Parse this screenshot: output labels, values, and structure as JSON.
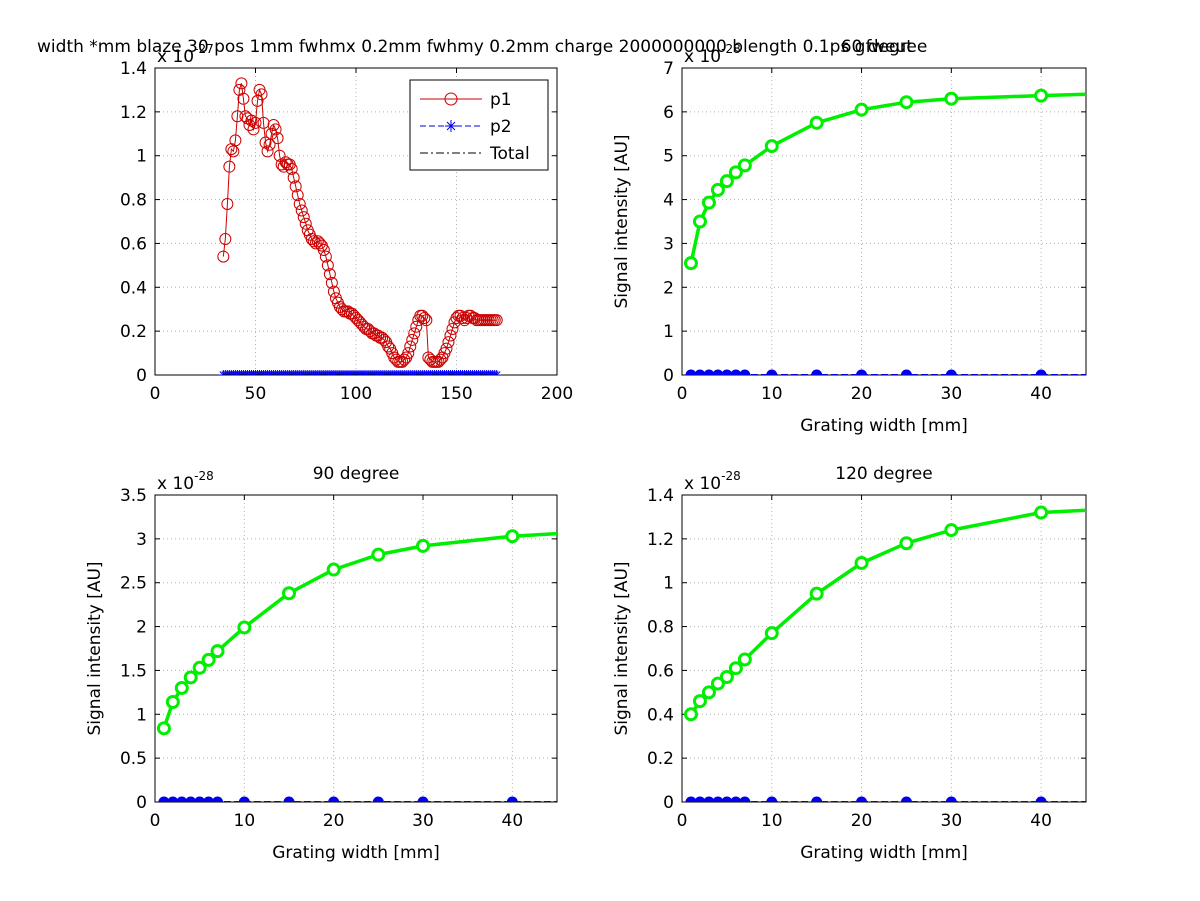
{
  "figure": {
    "suptitle": "width *mm blaze 30 pos 1mm fwhmx 0.2mm fwhmy 0.2mm charge 2000000000 blength 0.1ps gfweut",
    "colors": {
      "p1": "#cc0000",
      "p2": "#0000ee",
      "total": "#000000",
      "green": "#00ee00",
      "blue": "#0000ee",
      "grid": "#b0b0b0"
    }
  },
  "chart_data": [
    {
      "type": "line",
      "title": "",
      "xlabel": "",
      "ylabel": "",
      "exponent_base": "x 10",
      "exponent_power": "-27",
      "xlim": [
        0,
        200
      ],
      "ylim": [
        0,
        1.4
      ],
      "xticks": [
        0,
        50,
        100,
        150,
        200
      ],
      "yticks": [
        0,
        0.2,
        0.4,
        0.6,
        0.8,
        1,
        1.2,
        1.4
      ],
      "grid": true,
      "legend": {
        "position": "top-right",
        "entries": [
          {
            "label": "p1",
            "marker": "circle",
            "style": "solid",
            "color": "#cc0000"
          },
          {
            "label": "p2",
            "marker": "star",
            "style": "dashed",
            "color": "#0000ee"
          },
          {
            "label": "Total",
            "marker": "none",
            "style": "dashdot",
            "color": "#000000"
          }
        ]
      },
      "series": [
        {
          "name": "p1",
          "x": [
            34,
            35,
            36,
            37,
            38,
            39,
            40,
            41,
            42,
            43,
            44,
            45,
            46,
            47,
            48,
            49,
            50,
            51,
            52,
            53,
            54,
            55,
            56,
            57,
            58,
            59,
            60,
            61,
            62,
            63,
            64,
            65,
            66,
            67,
            68,
            69,
            70,
            71,
            72,
            73,
            74,
            75,
            76,
            77,
            78,
            79,
            80,
            81,
            82,
            83,
            84,
            85,
            86,
            87,
            88,
            89,
            90,
            91,
            92,
            93,
            94,
            95,
            96,
            97,
            98,
            99,
            100,
            101,
            102,
            103,
            104,
            105,
            106,
            107,
            108,
            109,
            110,
            111,
            112,
            113,
            114,
            115,
            116,
            117,
            118,
            119,
            120,
            121,
            122,
            123,
            124,
            125,
            126,
            127,
            128,
            129,
            130,
            131,
            132,
            133,
            134,
            135,
            136,
            137,
            138,
            139,
            140,
            141,
            142,
            143,
            144,
            145,
            146,
            147,
            148,
            149,
            150,
            151,
            152,
            153,
            154,
            155,
            156,
            157,
            158,
            159,
            160,
            161,
            162,
            163,
            164,
            165,
            166,
            167,
            168,
            169,
            170
          ],
          "y": [
            0.54,
            0.62,
            0.78,
            0.95,
            1.03,
            1.02,
            1.07,
            1.18,
            1.3,
            1.33,
            1.26,
            1.18,
            1.17,
            1.14,
            1.16,
            1.12,
            1.15,
            1.25,
            1.3,
            1.28,
            1.15,
            1.06,
            1.02,
            1.05,
            1.1,
            1.14,
            1.12,
            1.08,
            1.0,
            0.96,
            0.95,
            0.97,
            0.96,
            0.96,
            0.94,
            0.9,
            0.86,
            0.82,
            0.78,
            0.75,
            0.72,
            0.69,
            0.66,
            0.64,
            0.62,
            0.61,
            0.6,
            0.61,
            0.6,
            0.59,
            0.57,
            0.54,
            0.5,
            0.46,
            0.42,
            0.38,
            0.35,
            0.33,
            0.31,
            0.3,
            0.29,
            0.29,
            0.29,
            0.28,
            0.28,
            0.27,
            0.26,
            0.25,
            0.24,
            0.23,
            0.22,
            0.21,
            0.21,
            0.2,
            0.19,
            0.19,
            0.18,
            0.18,
            0.17,
            0.17,
            0.16,
            0.15,
            0.13,
            0.12,
            0.1,
            0.08,
            0.07,
            0.06,
            0.06,
            0.06,
            0.07,
            0.08,
            0.1,
            0.13,
            0.16,
            0.19,
            0.22,
            0.25,
            0.27,
            0.27,
            0.26,
            0.25,
            0.08,
            0.07,
            0.06,
            0.06,
            0.06,
            0.06,
            0.07,
            0.08,
            0.1,
            0.12,
            0.15,
            0.18,
            0.21,
            0.24,
            0.26,
            0.27,
            0.27,
            0.26,
            0.25,
            0.26,
            0.27,
            0.27,
            0.26,
            0.26,
            0.25,
            0.25,
            0.25,
            0.25,
            0.25,
            0.25,
            0.25,
            0.25,
            0.25,
            0.25,
            0.25
          ]
        },
        {
          "name": "p2",
          "x_range": [
            34,
            170
          ],
          "x_step": 1,
          "y_value": 0
        },
        {
          "name": "Total",
          "x_range": [
            34,
            170
          ],
          "y_value": 0
        }
      ]
    },
    {
      "type": "line",
      "title": "60 degree",
      "xlabel": "Grating width [mm]",
      "ylabel": "Signal intensity [AU]",
      "exponent_base": "x 10",
      "exponent_power": "-28",
      "xlim": [
        0,
        45
      ],
      "ylim": [
        0,
        7
      ],
      "xticks": [
        0,
        10,
        20,
        30,
        40
      ],
      "yticks": [
        0,
        1,
        2,
        3,
        4,
        5,
        6,
        7
      ],
      "grid": true,
      "series": [
        {
          "name": "",
          "color": "#00ee00",
          "marker": "circle",
          "x": [
            1,
            2,
            3,
            4,
            5,
            6,
            7,
            10,
            15,
            20,
            25,
            30,
            40,
            45
          ],
          "y": [
            2.55,
            3.5,
            3.93,
            4.22,
            4.42,
            4.62,
            4.78,
            5.22,
            5.75,
            6.05,
            6.22,
            6.3,
            6.37,
            6.4
          ],
          "markers_on": 13
        },
        {
          "name": "",
          "color": "#0000ee",
          "marker": "dot",
          "x": [
            1,
            2,
            3,
            4,
            5,
            6,
            7,
            10,
            15,
            20,
            25,
            30,
            40,
            45
          ],
          "y": [
            0,
            0,
            0,
            0,
            0,
            0,
            0,
            0,
            0,
            0,
            0,
            0,
            0,
            0
          ],
          "markers_on": 13
        }
      ]
    },
    {
      "type": "line",
      "title": "90 degree",
      "xlabel": "Grating width [mm]",
      "ylabel": "Signal intensity [AU]",
      "exponent_base": "x 10",
      "exponent_power": "-28",
      "xlim": [
        0,
        45
      ],
      "ylim": [
        0,
        3.5
      ],
      "xticks": [
        0,
        10,
        20,
        30,
        40
      ],
      "yticks": [
        0,
        0.5,
        1,
        1.5,
        2,
        2.5,
        3,
        3.5
      ],
      "grid": true,
      "series": [
        {
          "name": "",
          "color": "#00ee00",
          "marker": "circle",
          "x": [
            1,
            2,
            3,
            4,
            5,
            6,
            7,
            10,
            15,
            20,
            25,
            30,
            40,
            45
          ],
          "y": [
            0.84,
            1.14,
            1.3,
            1.42,
            1.53,
            1.62,
            1.72,
            1.99,
            2.38,
            2.65,
            2.82,
            2.92,
            3.03,
            3.06
          ],
          "markers_on": 13
        },
        {
          "name": "",
          "color": "#0000ee",
          "marker": "dot",
          "x": [
            1,
            2,
            3,
            4,
            5,
            6,
            7,
            10,
            15,
            20,
            25,
            30,
            40,
            45
          ],
          "y": [
            0,
            0,
            0,
            0,
            0,
            0,
            0,
            0,
            0,
            0,
            0,
            0,
            0,
            0
          ],
          "markers_on": 13
        }
      ]
    },
    {
      "type": "line",
      "title": "120 degree",
      "xlabel": "Grating width [mm]",
      "ylabel": "Signal intensity [AU]",
      "exponent_base": "x 10",
      "exponent_power": "-28",
      "xlim": [
        0,
        45
      ],
      "ylim": [
        0,
        1.4
      ],
      "xticks": [
        0,
        10,
        20,
        30,
        40
      ],
      "yticks": [
        0,
        0.2,
        0.4,
        0.6,
        0.8,
        1,
        1.2,
        1.4
      ],
      "grid": true,
      "series": [
        {
          "name": "",
          "color": "#00ee00",
          "marker": "circle",
          "x": [
            1,
            2,
            3,
            4,
            5,
            6,
            7,
            10,
            15,
            20,
            25,
            30,
            40,
            45
          ],
          "y": [
            0.4,
            0.46,
            0.5,
            0.54,
            0.57,
            0.61,
            0.65,
            0.77,
            0.95,
            1.09,
            1.18,
            1.24,
            1.32,
            1.33
          ],
          "markers_on": 13
        },
        {
          "name": "",
          "color": "#0000ee",
          "marker": "dot",
          "x": [
            1,
            2,
            3,
            4,
            5,
            6,
            7,
            10,
            15,
            20,
            25,
            30,
            40,
            45
          ],
          "y": [
            0,
            0,
            0,
            0,
            0,
            0,
            0,
            0,
            0,
            0,
            0,
            0,
            0,
            0
          ],
          "markers_on": 13
        }
      ]
    }
  ]
}
